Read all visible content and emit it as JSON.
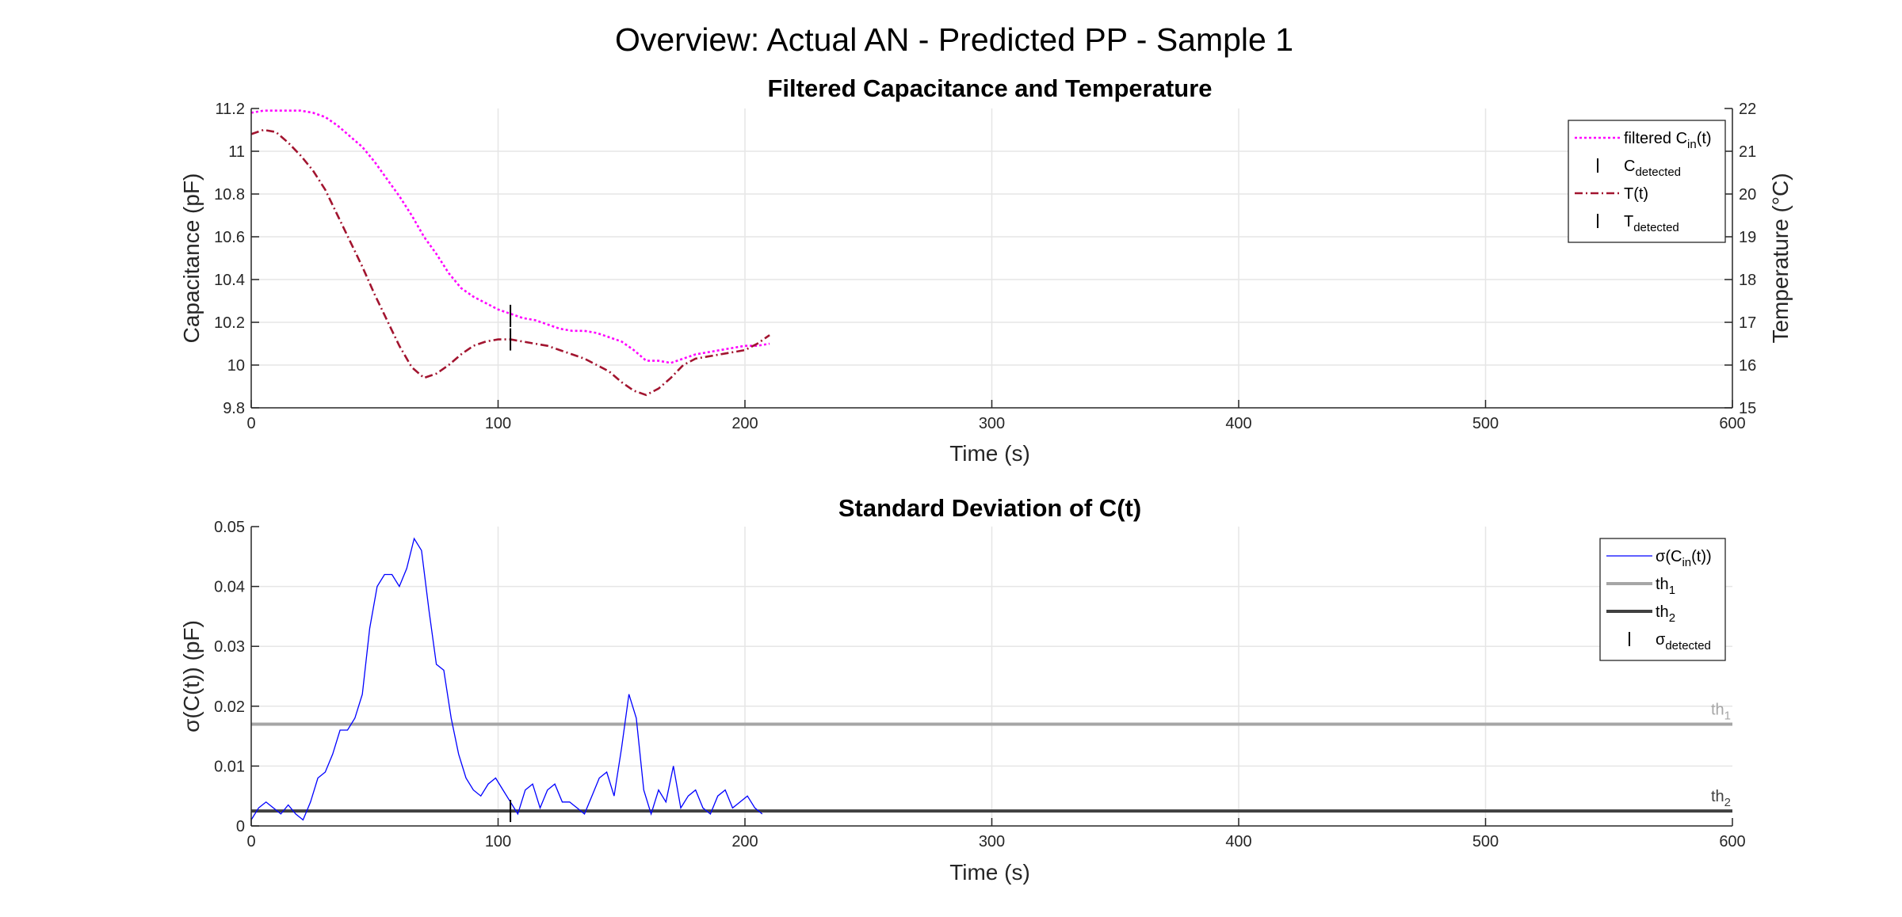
{
  "figure": {
    "title": "Overview: Actual AN - Predicted PP - Sample 1"
  },
  "chart_data": [
    {
      "type": "line",
      "title": "Filtered Capacitance and Temperature",
      "xlabel": "Time (s)",
      "ylabel": "Capacitance (pF)",
      "ylabel_right": "Temperature (°C)",
      "xlim": [
        0,
        600
      ],
      "ylim": [
        9.8,
        11.2
      ],
      "ylim_right": [
        15,
        22
      ],
      "xticks": [
        "0",
        "100",
        "200",
        "300",
        "400",
        "500",
        "600"
      ],
      "yticks": [
        "9.8",
        "10",
        "10.2",
        "10.4",
        "10.6",
        "10.8",
        "11",
        "11.2"
      ],
      "yticks_right": [
        "15",
        "16",
        "17",
        "18",
        "19",
        "20",
        "21",
        "22"
      ],
      "grid": true,
      "legend_position": "top-right",
      "legend": [
        {
          "main": "filtered C",
          "sub": "in",
          "tail": "(t)",
          "style": "dotted",
          "color": "#ff00ff"
        },
        {
          "main": "C",
          "sub": "detected",
          "tail": "",
          "style": "marker",
          "color": "#000000"
        },
        {
          "main": "T(t)",
          "sub": "",
          "tail": "",
          "style": "dashdot",
          "color": "#a2142f"
        },
        {
          "main": "T",
          "sub": "detected",
          "tail": "",
          "style": "marker",
          "color": "#000000"
        }
      ],
      "series": [
        {
          "axis": "left",
          "color": "#ff00ff",
          "style": "dotted",
          "x": [
            0,
            5,
            10,
            15,
            20,
            25,
            30,
            35,
            40,
            45,
            50,
            55,
            60,
            65,
            70,
            75,
            80,
            85,
            90,
            95,
            100,
            105,
            110,
            115,
            120,
            125,
            130,
            135,
            140,
            145,
            150,
            155,
            160,
            165,
            170,
            175,
            180,
            185,
            190,
            195,
            200,
            205,
            210
          ],
          "y": [
            11.18,
            11.19,
            11.19,
            11.19,
            11.19,
            11.18,
            11.16,
            11.12,
            11.07,
            11.02,
            10.95,
            10.87,
            10.79,
            10.7,
            10.6,
            10.52,
            10.43,
            10.36,
            10.32,
            10.29,
            10.26,
            10.24,
            10.22,
            10.21,
            10.19,
            10.17,
            10.16,
            10.16,
            10.15,
            10.13,
            10.11,
            10.07,
            10.02,
            10.02,
            10.01,
            10.03,
            10.05,
            10.06,
            10.07,
            10.08,
            10.09,
            10.09,
            10.1
          ]
        },
        {
          "axis": "right",
          "color": "#a2142f",
          "style": "dashdot",
          "x": [
            0,
            5,
            10,
            15,
            20,
            25,
            30,
            35,
            40,
            45,
            50,
            55,
            60,
            65,
            70,
            75,
            80,
            85,
            90,
            95,
            100,
            105,
            110,
            115,
            120,
            125,
            130,
            135,
            140,
            145,
            150,
            155,
            160,
            165,
            170,
            175,
            180,
            185,
            190,
            195,
            200,
            205,
            210
          ],
          "y": [
            21.4,
            21.5,
            21.45,
            21.2,
            20.9,
            20.55,
            20.1,
            19.5,
            18.9,
            18.3,
            17.65,
            17.05,
            16.45,
            15.95,
            15.7,
            15.8,
            16.0,
            16.25,
            16.45,
            16.55,
            16.6,
            16.6,
            16.55,
            16.5,
            16.45,
            16.35,
            16.25,
            16.15,
            16.0,
            15.85,
            15.6,
            15.4,
            15.3,
            15.45,
            15.7,
            16.0,
            16.15,
            16.2,
            16.25,
            16.3,
            16.35,
            16.5,
            16.7
          ]
        }
      ],
      "markers": [
        {
          "x": 105,
          "y": 10.23,
          "axis": "left",
          "label": "C_detected"
        },
        {
          "x": 105,
          "y": 16.6,
          "axis": "right",
          "label": "T_detected"
        }
      ]
    },
    {
      "type": "line",
      "title": "Standard Deviation of C(t)",
      "xlabel": "Time (s)",
      "ylabel": "σ(C(t)) (pF)",
      "xlim": [
        0,
        600
      ],
      "ylim": [
        0,
        0.05
      ],
      "xticks": [
        "0",
        "100",
        "200",
        "300",
        "400",
        "500",
        "600"
      ],
      "yticks": [
        "0",
        "0.01",
        "0.02",
        "0.03",
        "0.04",
        "0.05"
      ],
      "grid": true,
      "legend_position": "top-right",
      "legend": [
        {
          "main": "σ(C",
          "sub": "in",
          "tail": "(t))",
          "style": "solid-thin",
          "color": "#0000ff"
        },
        {
          "main": "th",
          "sub": "1",
          "tail": "",
          "style": "solid-thick",
          "color": "#a6a6a6"
        },
        {
          "main": "th",
          "sub": "2",
          "tail": "",
          "style": "solid-thick",
          "color": "#404040"
        },
        {
          "main": "σ",
          "sub": "detected",
          "tail": "",
          "style": "marker",
          "color": "#000000"
        }
      ],
      "series": [
        {
          "color": "#0000ff",
          "style": "solid",
          "x": [
            0,
            3,
            6,
            9,
            12,
            15,
            18,
            21,
            24,
            27,
            30,
            33,
            36,
            39,
            42,
            45,
            48,
            51,
            54,
            57,
            60,
            63,
            66,
            69,
            72,
            75,
            78,
            81,
            84,
            87,
            90,
            93,
            96,
            99,
            102,
            105,
            108,
            111,
            114,
            117,
            120,
            123,
            126,
            129,
            132,
            135,
            138,
            141,
            144,
            147,
            150,
            153,
            156,
            159,
            162,
            165,
            168,
            171,
            174,
            177,
            180,
            183,
            186,
            189,
            192,
            195,
            198,
            201,
            204,
            207
          ],
          "y": [
            0.001,
            0.003,
            0.004,
            0.003,
            0.002,
            0.0035,
            0.002,
            0.001,
            0.004,
            0.008,
            0.009,
            0.012,
            0.016,
            0.016,
            0.018,
            0.022,
            0.033,
            0.04,
            0.042,
            0.042,
            0.04,
            0.043,
            0.048,
            0.046,
            0.036,
            0.027,
            0.026,
            0.018,
            0.012,
            0.008,
            0.006,
            0.005,
            0.007,
            0.008,
            0.006,
            0.004,
            0.002,
            0.006,
            0.007,
            0.003,
            0.006,
            0.007,
            0.004,
            0.004,
            0.003,
            0.002,
            0.005,
            0.008,
            0.009,
            0.005,
            0.013,
            0.022,
            0.018,
            0.006,
            0.002,
            0.006,
            0.004,
            0.01,
            0.003,
            0.005,
            0.006,
            0.003,
            0.002,
            0.005,
            0.006,
            0.003,
            0.004,
            0.005,
            0.003,
            0.002
          ]
        }
      ],
      "thresholds": [
        {
          "label": "th",
          "sub": "1",
          "y": 0.017,
          "color": "#a6a6a6"
        },
        {
          "label": "th",
          "sub": "2",
          "y": 0.0025,
          "color": "#404040"
        }
      ],
      "markers": [
        {
          "x": 105,
          "y": 0.0025,
          "label": "σ_detected"
        }
      ]
    }
  ]
}
